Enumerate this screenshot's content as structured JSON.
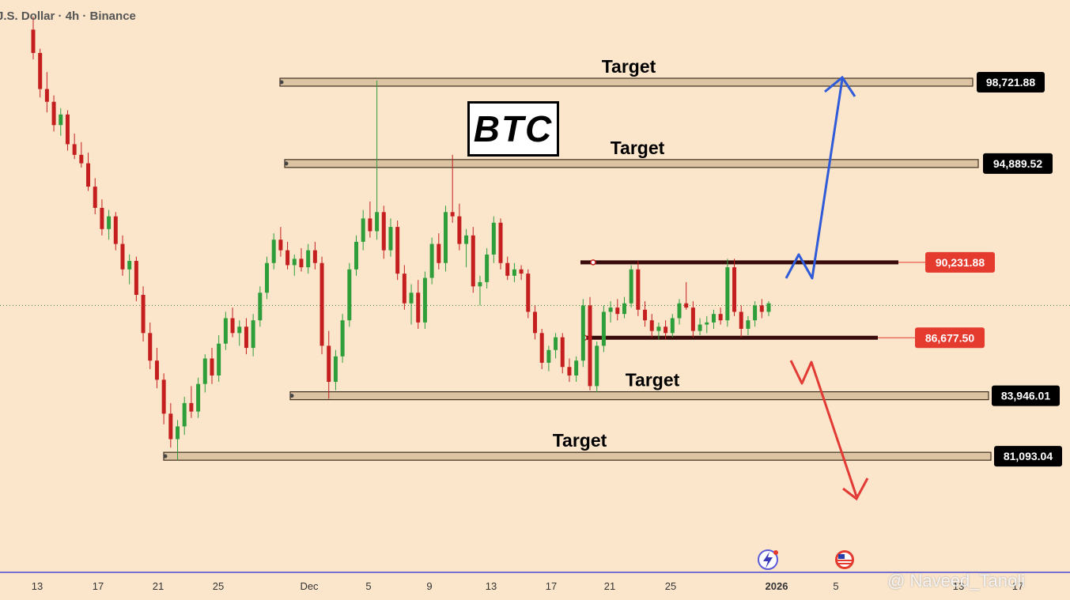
{
  "header": {
    "symbol_line": "J.S. Dollar · 4h · Binance"
  },
  "annotation": {
    "title": "BTC",
    "watermark": "@ Naveed_Tanoli"
  },
  "icons": [
    "lightning-event-icon",
    "us-flag-event-icon"
  ],
  "colors": {
    "background": "#fbe6cc",
    "up_candle": "#2e9e3a",
    "down_candle": "#c41e1e",
    "target_band": "#dcc3a2",
    "resistance_support": "#3a0b0b",
    "price_tag_red": "#e53a2e",
    "price_tag_black": "#000000",
    "bull_arrow": "#2f5bd9",
    "bear_arrow": "#e23a34",
    "axis_line": "#2b2bd0"
  },
  "chart_data": {
    "type": "candlestick",
    "symbol": "BTC",
    "timeframe": "4h",
    "exchange": "Binance",
    "x_tick_labels": [
      "13",
      "17",
      "21",
      "25",
      "Dec",
      "5",
      "9",
      "13",
      "17",
      "21",
      "25",
      "2026",
      "5",
      "13",
      "17"
    ],
    "y_range": [
      79500,
      101500
    ],
    "levels": [
      {
        "label": "Target",
        "price": 98721.88,
        "price_label": "98,721.88",
        "kind": "target"
      },
      {
        "label": "Target",
        "price": 94889.52,
        "price_label": "94,889.52",
        "kind": "target"
      },
      {
        "label": "",
        "price": 90231.88,
        "price_label": "90,231.88",
        "kind": "resistance"
      },
      {
        "label": "",
        "price": 86677.5,
        "price_label": "86,677.50",
        "kind": "support"
      },
      {
        "label": "Target",
        "price": 83946.01,
        "price_label": "83,946.01",
        "kind": "target"
      },
      {
        "label": "Target",
        "price": 81093.04,
        "price_label": "81,093.04",
        "kind": "target"
      }
    ],
    "current_price_approx": 88200,
    "series": [
      {
        "values": [
          [
            101200,
            101800,
            99800,
            100100
          ],
          [
            100100,
            100300,
            98000,
            98400
          ],
          [
            98400,
            99200,
            97300,
            97800
          ],
          [
            97800,
            98100,
            96400,
            96700
          ],
          [
            96700,
            97500,
            96200,
            97200
          ],
          [
            97200,
            97400,
            95500,
            95800
          ],
          [
            95800,
            96300,
            95100,
            95300
          ],
          [
            95300,
            95900,
            94700,
            94900
          ],
          [
            94900,
            95400,
            93600,
            93800
          ],
          [
            93800,
            94200,
            92500,
            92800
          ],
          [
            92800,
            93200,
            91500,
            91800
          ],
          [
            91800,
            92700,
            91300,
            92400
          ],
          [
            92400,
            92600,
            90800,
            91100
          ],
          [
            91100,
            91500,
            89600,
            89900
          ],
          [
            89900,
            90600,
            89200,
            90300
          ],
          [
            90300,
            90500,
            88400,
            88700
          ],
          [
            88700,
            89100,
            86500,
            86900
          ],
          [
            86900,
            87400,
            85200,
            85600
          ],
          [
            85600,
            86200,
            84300,
            84700
          ],
          [
            84700,
            85000,
            82600,
            83100
          ],
          [
            83100,
            83600,
            81500,
            81900
          ],
          [
            81900,
            82800,
            80900,
            82500
          ],
          [
            82500,
            83900,
            82100,
            83600
          ],
          [
            83600,
            84400,
            82900,
            83200
          ],
          [
            83200,
            84800,
            82900,
            84500
          ],
          [
            84500,
            85900,
            84100,
            85700
          ],
          [
            85700,
            86200,
            84500,
            84900
          ],
          [
            84900,
            86800,
            84600,
            86400
          ],
          [
            86400,
            87900,
            86100,
            87600
          ],
          [
            87600,
            88100,
            86700,
            86900
          ],
          [
            86900,
            87500,
            86300,
            87200
          ],
          [
            87200,
            87600,
            85900,
            86200
          ],
          [
            86200,
            87800,
            85800,
            87500
          ],
          [
            87500,
            89100,
            87200,
            88800
          ],
          [
            88800,
            90500,
            88500,
            90200
          ],
          [
            90200,
            91600,
            89900,
            91300
          ],
          [
            91300,
            91900,
            90500,
            90800
          ],
          [
            90800,
            91200,
            89900,
            90100
          ],
          [
            90100,
            90600,
            89600,
            90400
          ],
          [
            90400,
            90900,
            89800,
            90000
          ],
          [
            90000,
            91100,
            89700,
            90800
          ],
          [
            90800,
            91200,
            89900,
            90200
          ],
          [
            90200,
            90500,
            85900,
            86300
          ],
          [
            86300,
            87000,
            83800,
            84600
          ],
          [
            84600,
            86100,
            84200,
            85800
          ],
          [
            85800,
            87800,
            85500,
            87500
          ],
          [
            87500,
            90200,
            87200,
            89900
          ],
          [
            89900,
            91500,
            89600,
            91200
          ],
          [
            91200,
            92700,
            90800,
            92300
          ],
          [
            92300,
            93100,
            91400,
            91700
          ],
          [
            91700,
            98800,
            91300,
            92600
          ],
          [
            92600,
            92900,
            90400,
            90800
          ],
          [
            90800,
            92300,
            90500,
            91900
          ],
          [
            91900,
            92200,
            89400,
            89700
          ],
          [
            89700,
            90100,
            88000,
            88300
          ],
          [
            88300,
            89200,
            87300,
            88800
          ],
          [
            88800,
            89400,
            87100,
            87400
          ],
          [
            87400,
            89800,
            87100,
            89500
          ],
          [
            89500,
            91400,
            89200,
            91100
          ],
          [
            91100,
            91600,
            89900,
            90200
          ],
          [
            90200,
            92900,
            89800,
            92600
          ],
          [
            92600,
            95300,
            92100,
            92400
          ],
          [
            92400,
            93000,
            90800,
            91100
          ],
          [
            91100,
            91800,
            90000,
            91500
          ],
          [
            91500,
            91900,
            88800,
            89100
          ],
          [
            89100,
            89600,
            88200,
            89300
          ],
          [
            89300,
            90900,
            89000,
            90600
          ],
          [
            90600,
            92400,
            90200,
            92100
          ],
          [
            92100,
            92300,
            89900,
            90200
          ],
          [
            90200,
            90500,
            89400,
            89600
          ],
          [
            89600,
            90200,
            89300,
            89900
          ],
          [
            89900,
            90100,
            89400,
            89700
          ],
          [
            89700,
            89900,
            87600,
            87900
          ],
          [
            87900,
            88200,
            86600,
            86900
          ],
          [
            86900,
            87100,
            85200,
            85500
          ],
          [
            85500,
            86300,
            85100,
            86100
          ],
          [
            86100,
            86900,
            85700,
            86700
          ],
          [
            86700,
            86900,
            85000,
            85300
          ],
          [
            85300,
            85700,
            84600,
            84900
          ],
          [
            84900,
            85800,
            84600,
            85600
          ],
          [
            85600,
            88500,
            85300,
            88200
          ],
          [
            88200,
            88600,
            84200,
            84400
          ],
          [
            84400,
            86500,
            84100,
            86300
          ],
          [
            86300,
            88200,
            86000,
            87900
          ],
          [
            87900,
            88400,
            87400,
            88100
          ],
          [
            88100,
            88500,
            87500,
            87800
          ],
          [
            87800,
            88600,
            87600,
            88300
          ],
          [
            88300,
            90100,
            88100,
            89900
          ],
          [
            89900,
            90300,
            87700,
            88000
          ],
          [
            88000,
            88400,
            87200,
            87500
          ],
          [
            87500,
            87800,
            86700,
            87000
          ],
          [
            87000,
            87400,
            86600,
            87200
          ],
          [
            87200,
            87500,
            86600,
            86900
          ],
          [
            86900,
            87800,
            86700,
            87600
          ],
          [
            87600,
            88500,
            87300,
            88300
          ],
          [
            88300,
            89300,
            88000,
            88100
          ],
          [
            88100,
            88400,
            86700,
            87000
          ],
          [
            87000,
            87600,
            86800,
            87300
          ],
          [
            87300,
            87700,
            86900,
            87400
          ],
          [
            87400,
            88000,
            87100,
            87800
          ],
          [
            87800,
            88100,
            87300,
            87500
          ],
          [
            87500,
            90400,
            87200,
            90000
          ],
          [
            90000,
            90400,
            87700,
            87900
          ],
          [
            87900,
            88200,
            86700,
            87100
          ],
          [
            87100,
            87700,
            86800,
            87500
          ],
          [
            87500,
            88400,
            87200,
            88200
          ],
          [
            88200,
            88500,
            87600,
            87900
          ],
          [
            87900,
            88400,
            87700,
            88300
          ]
        ]
      }
    ],
    "projection_bull": "break above 90,231.88 toward 94,889.52 and 98,721.88",
    "projection_bear": "break below 86,677.50 toward 83,946.01 and 81,093.04"
  }
}
